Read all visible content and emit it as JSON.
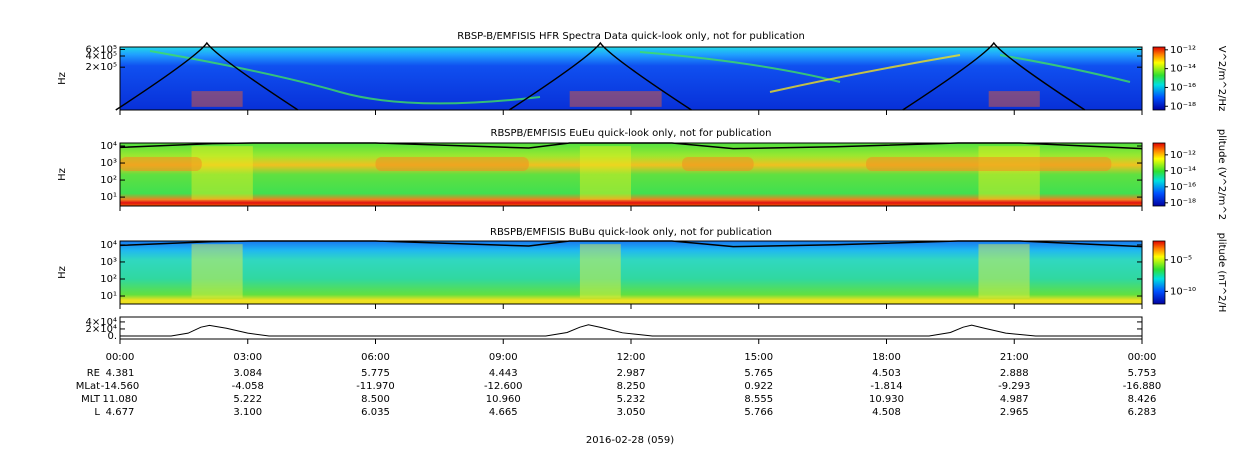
{
  "chart_data": [
    {
      "type": "spectrogram",
      "title": "RBSP-B/EMFISIS  HFR Spectra Data quick-look only, not for publication",
      "ylabel": "Hz",
      "log_y": true,
      "ylim": [
        14000,
        700000
      ],
      "yticks": [
        {
          "value": 600000,
          "label": "6×10⁵"
        },
        {
          "value": 400000,
          "label": "4×10⁵"
        },
        {
          "value": 200000,
          "label": "2×10⁵"
        }
      ],
      "xlim": [
        0,
        24
      ],
      "xticks": [
        0,
        3,
        6,
        9,
        12,
        15,
        18,
        21,
        24
      ],
      "colorbar_label": "V^2/m^2/Hz",
      "clim": [
        4e-19,
        2e-12
      ],
      "cticks": [
        {
          "value": 1e-12,
          "label": "10⁻¹²"
        },
        {
          "value": 1e-14,
          "label": "10⁻¹⁴"
        },
        {
          "value": 1e-16,
          "label": "10⁻¹⁶"
        },
        {
          "value": 1e-18,
          "label": "10⁻¹⁸"
        }
      ]
    },
    {
      "type": "spectrogram",
      "title": "RBSPB/EMFISIS  EuEu quick-look only, not for publication",
      "ylabel": "Hz",
      "log_y": true,
      "ylim": [
        3,
        15000
      ],
      "yticks": [
        {
          "value": 10000,
          "label": "10⁴"
        },
        {
          "value": 1000,
          "label": "10³"
        },
        {
          "value": 100,
          "label": "10²"
        },
        {
          "value": 10,
          "label": "10¹"
        }
      ],
      "xlim": [
        0,
        24
      ],
      "xticks": [
        0,
        3,
        6,
        9,
        12,
        15,
        18,
        21,
        24
      ],
      "colorbar_label": "plitude (V^2/m^2",
      "clim": [
        4e-19,
        3e-11
      ],
      "cticks": [
        {
          "value": 1e-12,
          "label": "10⁻¹²"
        },
        {
          "value": 1e-14,
          "label": "10⁻¹⁴"
        },
        {
          "value": 1e-16,
          "label": "10⁻¹⁶"
        },
        {
          "value": 1e-18,
          "label": "10⁻¹⁸"
        }
      ]
    },
    {
      "type": "spectrogram",
      "title": "RBSPB/EMFISIS  BuBu quick-look only, not for publication",
      "ylabel": "Hz",
      "log_y": true,
      "ylim": [
        3.4,
        17000
      ],
      "yticks": [
        {
          "value": 10000,
          "label": "10⁴"
        },
        {
          "value": 1000,
          "label": "10³"
        },
        {
          "value": 100,
          "label": "10²"
        },
        {
          "value": 10,
          "label": "10¹"
        }
      ],
      "xlim": [
        0,
        24
      ],
      "xticks": [
        0,
        3,
        6,
        9,
        12,
        15,
        18,
        21,
        24
      ],
      "colorbar_label": "plitude (nT^2/H",
      "clim": [
        1e-12,
        0.01
      ],
      "cticks": [
        {
          "value": 1e-05,
          "label": "10⁻⁵"
        },
        {
          "value": 1e-10,
          "label": "10⁻¹⁰"
        }
      ]
    },
    {
      "type": "line",
      "ylim": [
        -8600,
        54000
      ],
      "yticks": [
        {
          "value": 40000,
          "label": "4×10⁴"
        },
        {
          "value": 20000,
          "label": "2×10⁴"
        },
        {
          "value": 0,
          "label": "0."
        }
      ],
      "xlim": [
        0,
        24
      ],
      "xticks": [
        {
          "value": 0,
          "label": "00:00"
        },
        {
          "value": 3,
          "label": "03:00"
        },
        {
          "value": 6,
          "label": "06:00"
        },
        {
          "value": 9,
          "label": "09:00"
        },
        {
          "value": 12,
          "label": "12:00"
        },
        {
          "value": 15,
          "label": "15:00"
        },
        {
          "value": 18,
          "label": "18:00"
        },
        {
          "value": 21,
          "label": "21:00"
        },
        {
          "value": 24,
          "label": "00:00"
        }
      ],
      "color": "#000000",
      "x": [
        0,
        1.2,
        1.6,
        1.9,
        2.1,
        2.5,
        3,
        3.5,
        10,
        10.5,
        10.8,
        11,
        11.3,
        11.8,
        12.5,
        19,
        19.5,
        19.8,
        20,
        20.3,
        20.8,
        21.5,
        24
      ],
      "values": [
        0,
        0,
        8000,
        25000,
        30000,
        22000,
        8000,
        0,
        0,
        10000,
        25000,
        32000,
        24000,
        9000,
        0,
        0,
        10000,
        25000,
        31000,
        22000,
        8000,
        0,
        0
      ]
    }
  ],
  "ephemeris": [
    {
      "label": "RE",
      "values": [
        "4.381",
        "3.084",
        "5.775",
        "4.443",
        "2.987",
        "5.765",
        "4.503",
        "2.888",
        "5.753"
      ]
    },
    {
      "label": "MLat",
      "values": [
        "-14.560",
        "-4.058",
        "-11.970",
        "-12.600",
        "8.250",
        "0.922",
        "-1.814",
        "-9.293",
        "-16.880"
      ]
    },
    {
      "label": "MLT",
      "values": [
        "11.080",
        "5.222",
        "8.500",
        "10.960",
        "5.232",
        "8.555",
        "10.930",
        "4.987",
        "8.426"
      ]
    },
    {
      "label": "L",
      "values": [
        "4.677",
        "3.100",
        "6.035",
        "4.665",
        "3.050",
        "5.766",
        "4.508",
        "2.965",
        "6.283"
      ]
    }
  ],
  "date_label": "2016-02-28 (059)"
}
